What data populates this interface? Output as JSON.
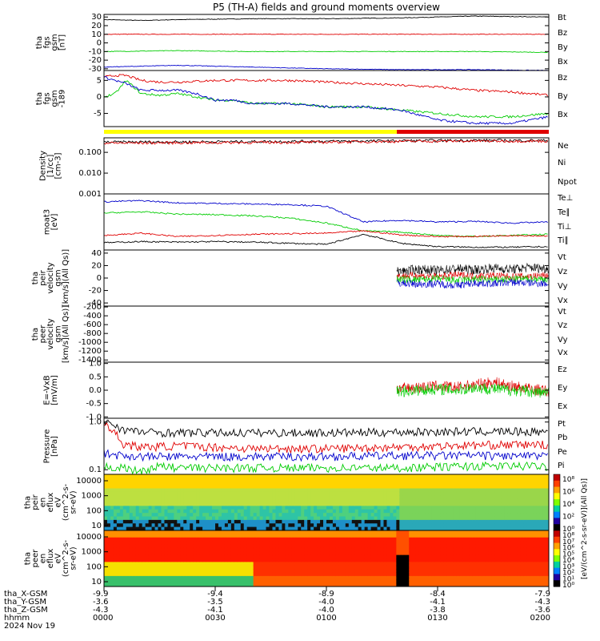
{
  "chart_data": {
    "type": "line",
    "title": "P5 (TH-A) fields and ground moments overview",
    "colors": {
      "black": "#000000",
      "red": "#e00000",
      "green": "#00cc00",
      "blue": "#0000cc",
      "yellow": "#ffff00"
    },
    "panels": [
      {
        "id": "fgs",
        "ylabel": [
          "tha",
          "fgs",
          "gsm",
          "[nT]"
        ],
        "ylim": [
          -32,
          33
        ],
        "ticks": [
          "30",
          "20",
          "10",
          "0",
          "-10",
          "-20",
          "-30"
        ],
        "legend": [
          "Bt",
          "Bz",
          "By",
          "Bx"
        ],
        "series": [
          {
            "name": "Bt",
            "color": "#000000",
            "x": [
              0,
              10,
              20,
              40,
              60,
              80,
              100,
              120
            ],
            "y": [
              27,
              26,
              27,
              28,
              28,
              29,
              31,
              30
            ]
          },
          {
            "name": "Bz",
            "color": "#e00000",
            "x": [
              0,
              20,
              40,
              60,
              80,
              100,
              120
            ],
            "y": [
              10,
              10,
              10,
              10,
              10,
              10,
              10
            ]
          },
          {
            "name": "By",
            "color": "#00cc00",
            "x": [
              0,
              20,
              40,
              60,
              80,
              100,
              120
            ],
            "y": [
              -10,
              -9,
              -10,
              -10,
              -10,
              -10,
              -11
            ]
          },
          {
            "name": "Bx",
            "color": "#0000cc",
            "x": [
              0,
              20,
              40,
              60,
              80,
              100,
              120
            ],
            "y": [
              -28,
              -26,
              -28,
              -30,
              -31,
              -31,
              -32
            ]
          }
        ]
      },
      {
        "id": "fgs189",
        "ylabel": [
          "tha",
          "fgs",
          "gsm",
          "-189"
        ],
        "ylim": [
          -9,
          8
        ],
        "ticks": [
          "5",
          "0",
          "-5"
        ],
        "legend": [
          "Bz",
          "By",
          "Bx"
        ],
        "series": [
          {
            "name": "Bz",
            "color": "#e00000",
            "x": [
              0,
              3,
              6,
              10,
              15,
              20,
              30,
              40,
              50,
              60,
              70,
              80,
              90,
              100,
              110,
              120
            ],
            "y": [
              6,
              6.5,
              6.5,
              5,
              4.5,
              4.5,
              5,
              5,
              5,
              4.5,
              4,
              3.5,
              3,
              2,
              1.5,
              0.5
            ]
          },
          {
            "name": "By",
            "color": "#00cc00",
            "x": [
              0,
              3,
              6,
              10,
              15,
              20,
              25,
              30,
              35,
              40,
              50,
              60,
              70,
              80,
              90,
              100,
              110,
              120
            ],
            "y": [
              0,
              1,
              5,
              1,
              0.5,
              1,
              0,
              -1,
              -1,
              -2,
              -2,
              -3,
              -3,
              -4,
              -5,
              -6,
              -6,
              -5
            ]
          },
          {
            "name": "Bx",
            "color": "#0000cc",
            "x": [
              0,
              3,
              6,
              10,
              15,
              20,
              25,
              30,
              35,
              40,
              50,
              60,
              70,
              80,
              90,
              100,
              110,
              120
            ],
            "y": [
              6,
              5,
              4,
              2,
              2,
              2,
              1,
              -1,
              -1,
              -2,
              -2,
              -3,
              -3,
              -4,
              -7,
              -8,
              -8,
              -6
            ]
          }
        ]
      },
      {
        "id": "density",
        "ylabel": [
          "Density",
          "[1/cc]",
          "[cm-3]"
        ],
        "log": true,
        "ylim": [
          0.001,
          0.5
        ],
        "ticks": [
          "0.100",
          "0.010",
          "0.001"
        ],
        "legend": [
          "Ne",
          "Ni",
          "Npot"
        ],
        "series": [
          {
            "name": "Ne",
            "color": "#000000",
            "x": [
              0,
              20,
              40,
              60,
              80,
              100,
              120
            ],
            "y": [
              0.31,
              0.32,
              0.33,
              0.34,
              0.36,
              0.38,
              0.37
            ]
          },
          {
            "name": "Ni",
            "color": "#e00000",
            "x": [
              0,
              20,
              40,
              60,
              80,
              100,
              120
            ],
            "y": [
              0.28,
              0.29,
              0.3,
              0.31,
              0.34,
              0.35,
              0.35
            ]
          }
        ]
      },
      {
        "id": "temp",
        "ylabel": [
          "moat3",
          "[eV]"
        ],
        "ylim": [
          0,
          10
        ],
        "legend": [
          "Te⊥",
          "Te∥",
          "Ti⊥",
          "Ti∥"
        ],
        "series": [
          {
            "name": "Ti⊥",
            "color": "#0000cc",
            "x": [
              0,
              10,
              20,
              30,
              40,
              50,
              60,
              70,
              80,
              90,
              100,
              110,
              120
            ],
            "y": [
              8.6,
              8.8,
              8.4,
              8.3,
              8.2,
              8.1,
              7.8,
              5,
              5.3,
              5,
              5.1,
              4.8,
              5
            ]
          },
          {
            "name": "Ti∥",
            "color": "#00cc00",
            "x": [
              0,
              10,
              20,
              30,
              40,
              50,
              60,
              70,
              80,
              90,
              100,
              110,
              120
            ],
            "y": [
              6.6,
              6.8,
              6.4,
              6.3,
              6.1,
              5.7,
              4.8,
              3.4,
              3.2,
              2.6,
              2.4,
              2.6,
              2.8
            ]
          },
          {
            "name": "Te⊥",
            "color": "#e00000",
            "x": [
              0,
              10,
              20,
              30,
              40,
              50,
              60,
              70,
              80,
              90,
              100,
              110,
              120
            ],
            "y": [
              2.6,
              3,
              2.4,
              2.6,
              2.8,
              2.9,
              3,
              3.4,
              2.7,
              2.4,
              2.4,
              2.6,
              2.5
            ]
          },
          {
            "name": "Te∥",
            "color": "#000000",
            "x": [
              0,
              10,
              20,
              30,
              40,
              50,
              60,
              70,
              80,
              90,
              100,
              110,
              120
            ],
            "y": [
              1.3,
              1.5,
              1.4,
              1.5,
              1.4,
              1.2,
              1,
              2.8,
              1.2,
              0.6,
              0.5,
              0.5,
              0.6
            ]
          }
        ]
      },
      {
        "id": "peir",
        "ylabel": [
          "tha",
          "peir",
          "velocity",
          "gsm",
          "[km/s](All Qs)]"
        ],
        "ylim": [
          -45,
          45
        ],
        "ticks": [
          "40",
          "20",
          "0",
          "-20",
          "-40"
        ],
        "legend": [
          "Vt",
          "Vz",
          "Vy",
          "Vx"
        ],
        "series": [
          {
            "name": "Vt",
            "color": "#000000",
            "x": [
              79,
              85,
              90,
              95,
              100,
              105,
              110,
              115,
              120
            ],
            "y": [
              10,
              14,
              12,
              15,
              13,
              16,
              14,
              17,
              15
            ]
          },
          {
            "name": "Vz",
            "color": "#e00000",
            "x": [
              79,
              85,
              90,
              95,
              100,
              105,
              110,
              115,
              120
            ],
            "y": [
              3,
              4,
              2,
              5,
              3,
              4,
              2,
              3,
              4
            ]
          },
          {
            "name": "Vy",
            "color": "#00cc00",
            "x": [
              79,
              85,
              90,
              95,
              100,
              105,
              110,
              115,
              120
            ],
            "y": [
              -2,
              -3,
              -1,
              -4,
              -2,
              -3,
              -2,
              -1,
              -2
            ]
          },
          {
            "name": "Vx",
            "color": "#0000cc",
            "x": [
              79,
              85,
              90,
              95,
              100,
              105,
              110,
              115,
              120
            ],
            "y": [
              -8,
              -10,
              -9,
              -12,
              -8,
              -9,
              -7,
              -8,
              -9
            ]
          }
        ]
      },
      {
        "id": "peer",
        "ylabel": [
          "tha",
          "peer",
          "velocity",
          "gsm",
          "[km/s](All Qs)]"
        ],
        "ylim": [
          -1450,
          -180
        ],
        "ticks": [
          "-200",
          "-400",
          "-600",
          "-800",
          "-1000",
          "-1200",
          "-1400"
        ],
        "legend": [
          "Vt",
          "Vz",
          "Vy",
          "Vx"
        ],
        "series": []
      },
      {
        "id": "exb",
        "ylabel": [
          "E=-VxB",
          "[mV/m]"
        ],
        "ylim": [
          -1.05,
          1.05
        ],
        "ticks": [
          "1.0",
          "0.5",
          "0.0",
          "-0.5",
          "-1.0"
        ],
        "legend": [
          "Ez",
          "Ey",
          "Ex"
        ],
        "series": [
          {
            "name": "Ez",
            "color": "#e00000",
            "x": [
              79,
              85,
              90,
              95,
              100,
              105,
              110,
              115,
              120
            ],
            "y": [
              0.05,
              0.1,
              0.15,
              0.1,
              0.2,
              0.3,
              0.15,
              0.05,
              -0.05
            ]
          },
          {
            "name": "Ey",
            "color": "#00cc00",
            "x": [
              79,
              85,
              90,
              95,
              100,
              105,
              110,
              115,
              120
            ],
            "y": [
              -0.05,
              0,
              0.05,
              0,
              0.1,
              0.05,
              0,
              -0.05,
              -0.1
            ]
          }
        ]
      },
      {
        "id": "pressure",
        "ylabel": [
          "Pressure",
          "[nPa]"
        ],
        "log": true,
        "ylim": [
          0.08,
          1.2
        ],
        "ticks": [
          "1.0",
          "0.1"
        ],
        "legend": [
          "Pt",
          "Pb",
          "Pe",
          "Pi"
        ],
        "series": [
          {
            "name": "Pt",
            "color": "#000000",
            "x": [
              0,
              2,
              5,
              10,
              20,
              40,
              60,
              80,
              100,
              120
            ],
            "y": [
              1.05,
              0.95,
              0.7,
              0.62,
              0.6,
              0.6,
              0.6,
              0.62,
              0.64,
              0.63
            ]
          },
          {
            "name": "Pb",
            "color": "#e00000",
            "x": [
              0,
              2,
              5,
              10,
              20,
              30,
              40,
              60,
              80,
              100,
              120
            ],
            "y": [
              1.0,
              0.7,
              0.35,
              0.3,
              0.32,
              0.3,
              0.28,
              0.28,
              0.3,
              0.33,
              0.34
            ]
          },
          {
            "name": "Pe",
            "color": "#0000cc",
            "x": [
              0,
              5,
              10,
              20,
              40,
              60,
              80,
              100,
              120
            ],
            "y": [
              0.22,
              0.2,
              0.19,
              0.19,
              0.19,
              0.19,
              0.2,
              0.2,
              0.19
            ]
          },
          {
            "name": "Pi",
            "color": "#00cc00",
            "x": [
              0,
              5,
              10,
              15,
              20,
              40,
              60,
              80,
              100,
              120
            ],
            "y": [
              0.12,
              0.11,
              0.09,
              0.12,
              0.11,
              0.11,
              0.11,
              0.11,
              0.12,
              0.12
            ]
          }
        ]
      },
      {
        "id": "peir_en",
        "ylabel": [
          "tha",
          "peir",
          "en",
          "eflux",
          "eV",
          "(cm^2-s-",
          "sr-eV)"
        ],
        "type": "heatmap",
        "ticks": [
          "10000",
          "1000",
          "100",
          "10"
        ]
      },
      {
        "id": "peer_en",
        "ylabel": [
          "tha",
          "peer",
          "en",
          "eflux",
          "eV",
          "(cm^2-s-",
          "sr-eV)"
        ],
        "type": "heatmap",
        "ticks": [
          "10000",
          "1000",
          "100",
          "10"
        ]
      }
    ],
    "colorbar": {
      "label": "[eV/(cm^2-s-sr-eV)](All Qs)]",
      "ticks": [
        "10⁸",
        "10⁶",
        "10⁴",
        "10²",
        "10⁰"
      ],
      "ticks2": [
        "10⁸",
        "10⁷",
        "10⁶",
        "10⁵",
        "10⁴",
        "10³",
        "10²",
        "10¹",
        "10⁰"
      ]
    },
    "xaxis": {
      "rows": [
        {
          "label": "tha_X-GSM",
          "values": [
            "-9.9",
            "-9.4",
            "-8.9",
            "-8.4",
            "-7.9"
          ]
        },
        {
          "label": "tha_Y-GSM",
          "values": [
            "-3.6",
            "-3.5",
            "-4.0",
            "-4.1",
            "-4.3"
          ]
        },
        {
          "label": "tha_Z-GSM",
          "values": [
            "-4.3",
            "-4.1",
            "-4.0",
            "-3.8",
            "-3.6"
          ]
        },
        {
          "label": "hhmm",
          "values": [
            "0000",
            "0030",
            "0100",
            "0130",
            "0200"
          ]
        }
      ],
      "date": "2024 Nov 19",
      "range_minutes": [
        0,
        120
      ]
    }
  }
}
